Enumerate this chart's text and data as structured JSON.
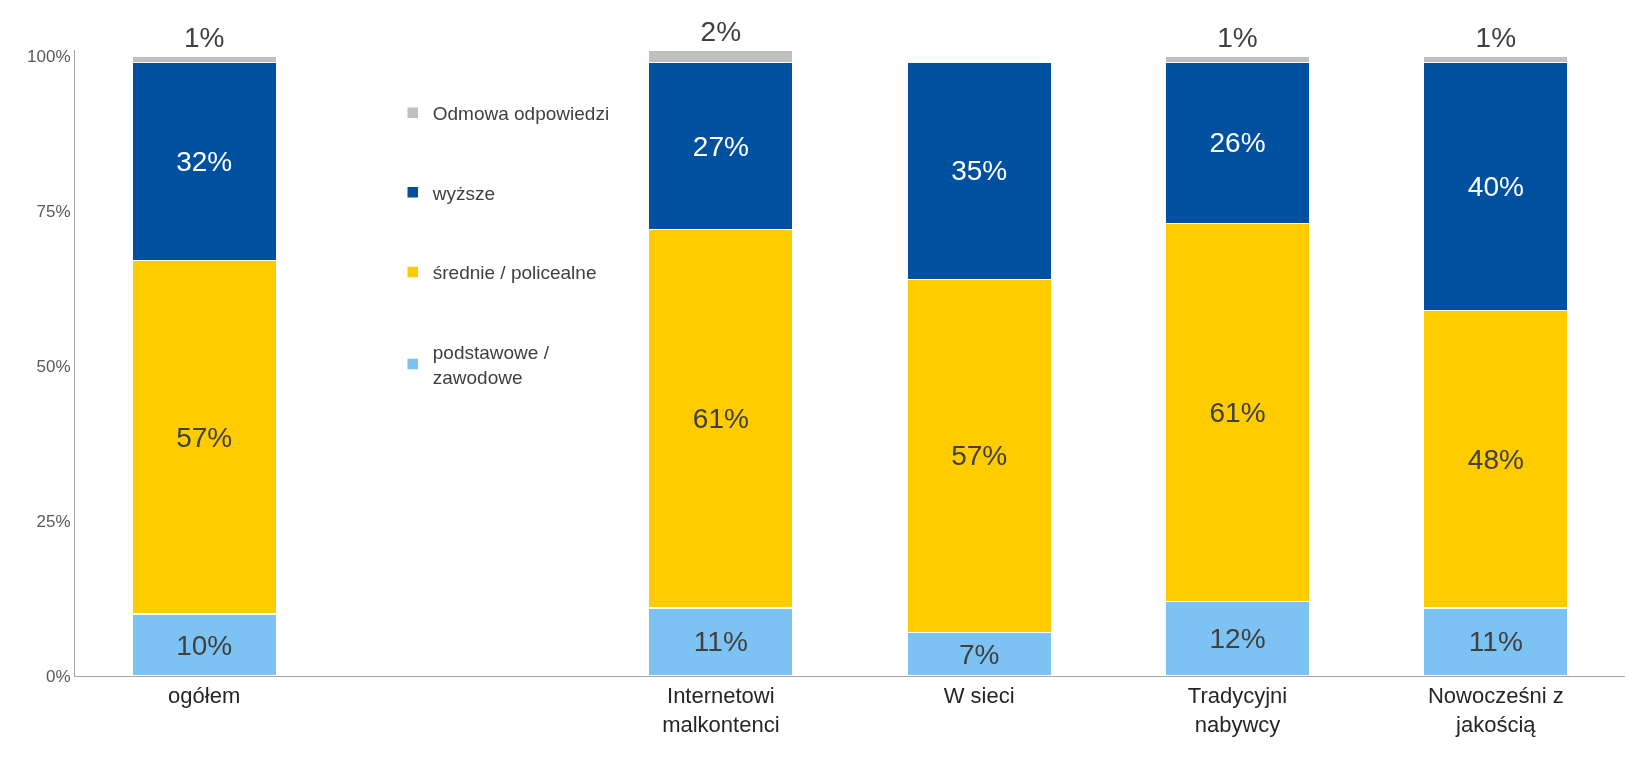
{
  "chart_data": {
    "type": "bar",
    "stacked": true,
    "categories": [
      "ogółem",
      null,
      "Internetowi malkontenci",
      "W sieci",
      "Tradycyjni nabywcy",
      "Nowocześni z jakością"
    ],
    "series": [
      {
        "name": "podstawowe / zawodowe",
        "color": "#7cc2f2",
        "values": [
          10,
          null,
          11,
          7,
          12,
          11
        ],
        "value_labels": [
          "10%",
          null,
          "11%",
          "7%",
          "12%",
          "11%"
        ]
      },
      {
        "name": "średnie / policealne",
        "color": "#ffcc00",
        "values": [
          57,
          null,
          61,
          57,
          61,
          48
        ],
        "value_labels": [
          "57%",
          null,
          "61%",
          "57%",
          "61%",
          "48%"
        ]
      },
      {
        "name": "wyższe",
        "color": "#0050a0",
        "values": [
          32,
          null,
          27,
          35,
          26,
          40
        ],
        "value_labels": [
          "32%",
          null,
          "27%",
          "35%",
          "26%",
          "40%"
        ]
      },
      {
        "name": "Odmowa odpowiedzi",
        "color": "#bfbfbf",
        "values": [
          1,
          null,
          2,
          null,
          1,
          1
        ],
        "value_labels": [
          "1%",
          null,
          "2%",
          null,
          "1%",
          "1%"
        ]
      }
    ],
    "ylim": [
      0,
      101
    ],
    "yticks": [
      {
        "value": 0,
        "label": "0%"
      },
      {
        "value": 25,
        "label": "25%"
      },
      {
        "value": 50,
        "label": "50%"
      },
      {
        "value": 75,
        "label": "75%"
      },
      {
        "value": 100,
        "label": "100%"
      }
    ],
    "legend": "top left",
    "grid": false
  }
}
